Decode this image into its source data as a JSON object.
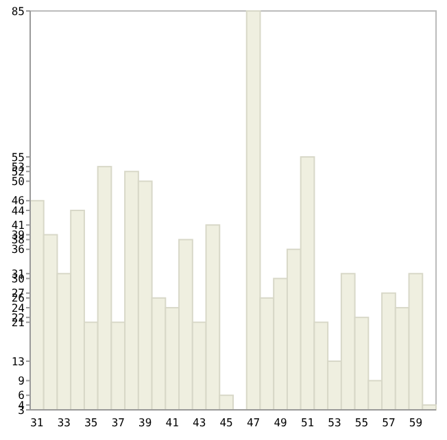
{
  "chart_data": {
    "type": "bar",
    "categories": [
      "31",
      null,
      "33",
      null,
      "35",
      null,
      "37",
      null,
      "39",
      null,
      "41",
      null,
      "43",
      null,
      "45",
      null,
      "47",
      null,
      "49",
      null,
      "51",
      null,
      "53",
      null,
      "55",
      null,
      "57",
      null,
      "59",
      null
    ],
    "values": [
      46,
      39,
      31,
      44,
      21,
      53,
      21,
      52,
      50,
      26,
      24,
      38,
      21,
      41,
      6,
      null,
      85,
      26,
      30,
      36,
      55,
      21,
      13,
      31,
      22,
      9,
      27,
      24,
      31,
      4
    ],
    "color": "#efefe0",
    "ylim": [
      3,
      85
    ],
    "yticks": [
      3,
      4,
      6,
      9,
      13,
      21,
      22,
      24,
      26,
      27,
      30,
      31,
      36,
      38,
      39,
      41,
      44,
      46,
      50,
      52,
      53,
      55,
      85
    ],
    "grid": false
  }
}
